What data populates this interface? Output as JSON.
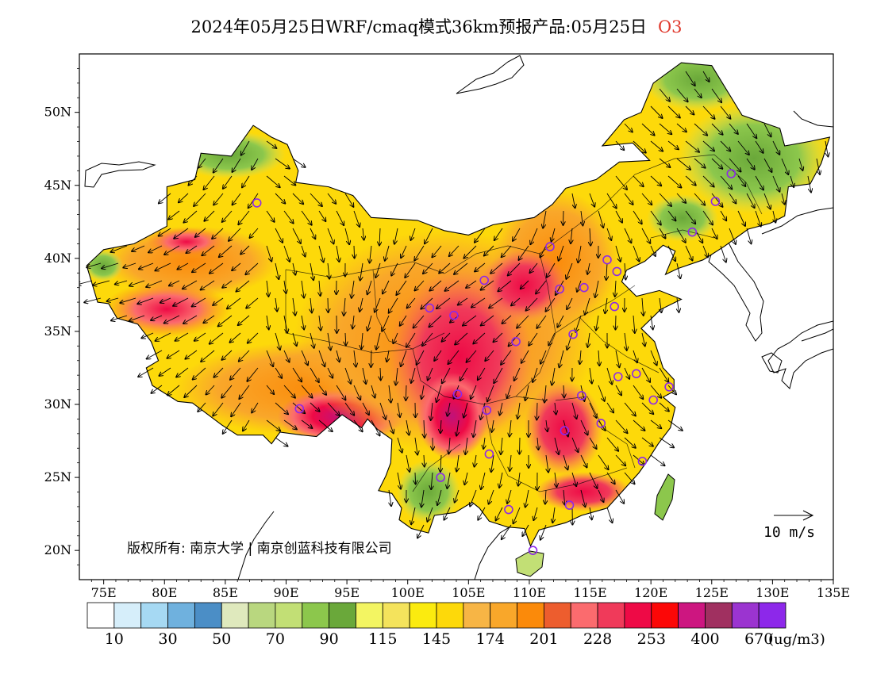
{
  "header": {
    "title": "2024年05月25日WRF/cmaq模式36km预报产品:05月25日",
    "pollutant": "O3"
  },
  "map": {
    "lon_range": [
      73,
      135
    ],
    "lat_range": [
      18,
      54
    ],
    "x_ticks": [
      "75E",
      "80E",
      "85E",
      "90E",
      "95E",
      "100E",
      "105E",
      "110E",
      "115E",
      "120E",
      "125E",
      "130E",
      "135E"
    ],
    "y_ticks": [
      "20N",
      "25N",
      "30N",
      "35N",
      "40N",
      "45N",
      "50N"
    ],
    "copyright": "版权所有: 南京大学 | 南京创蓝科技有限公司",
    "wind_reference": "10 m/s",
    "cities": [
      {
        "lon": 87.6,
        "lat": 43.8
      },
      {
        "lon": 91.1,
        "lat": 29.7
      },
      {
        "lon": 101.8,
        "lat": 36.6
      },
      {
        "lon": 103.8,
        "lat": 36.1
      },
      {
        "lon": 106.3,
        "lat": 38.5
      },
      {
        "lon": 111.7,
        "lat": 40.8
      },
      {
        "lon": 112.5,
        "lat": 37.9
      },
      {
        "lon": 114.5,
        "lat": 38.0
      },
      {
        "lon": 116.4,
        "lat": 39.9
      },
      {
        "lon": 117.2,
        "lat": 39.1
      },
      {
        "lon": 117.0,
        "lat": 36.7
      },
      {
        "lon": 113.6,
        "lat": 34.8
      },
      {
        "lon": 108.9,
        "lat": 34.3
      },
      {
        "lon": 104.1,
        "lat": 30.7
      },
      {
        "lon": 106.5,
        "lat": 29.6
      },
      {
        "lon": 106.7,
        "lat": 26.6
      },
      {
        "lon": 102.7,
        "lat": 25.0
      },
      {
        "lon": 108.3,
        "lat": 22.8
      },
      {
        "lon": 113.3,
        "lat": 23.1
      },
      {
        "lon": 110.3,
        "lat": 20.0
      },
      {
        "lon": 119.3,
        "lat": 26.1
      },
      {
        "lon": 115.9,
        "lat": 28.7
      },
      {
        "lon": 112.9,
        "lat": 28.2
      },
      {
        "lon": 114.3,
        "lat": 30.6
      },
      {
        "lon": 117.3,
        "lat": 31.9
      },
      {
        "lon": 118.8,
        "lat": 32.1
      },
      {
        "lon": 120.2,
        "lat": 30.3
      },
      {
        "lon": 121.5,
        "lat": 31.2
      },
      {
        "lon": 123.4,
        "lat": 41.8
      },
      {
        "lon": 125.3,
        "lat": 43.9
      },
      {
        "lon": 126.6,
        "lat": 45.8
      }
    ]
  },
  "legend": {
    "colors": [
      "#ffffff",
      "#d6eefa",
      "#a6d9f3",
      "#6fb1de",
      "#4b8ec6",
      "#dfe9bd",
      "#b9d77f",
      "#c2df75",
      "#8cc74c",
      "#6aa83a",
      "#f3f562",
      "#f4e35c",
      "#fbeb0f",
      "#fdd90a",
      "#f7b545",
      "#f9a72a",
      "#fb8a0a",
      "#ed5d2e",
      "#fb6b6e",
      "#f03a5a",
      "#ee0a46",
      "#fc0707",
      "#cd1680",
      "#a03060",
      "#9b34d0",
      "#8d28ea"
    ],
    "labels": [
      "10",
      "30",
      "50",
      "70",
      "90",
      "115",
      "145",
      "174",
      "201",
      "228",
      "253",
      "400",
      "670"
    ],
    "unit": "(ug/m3)"
  }
}
